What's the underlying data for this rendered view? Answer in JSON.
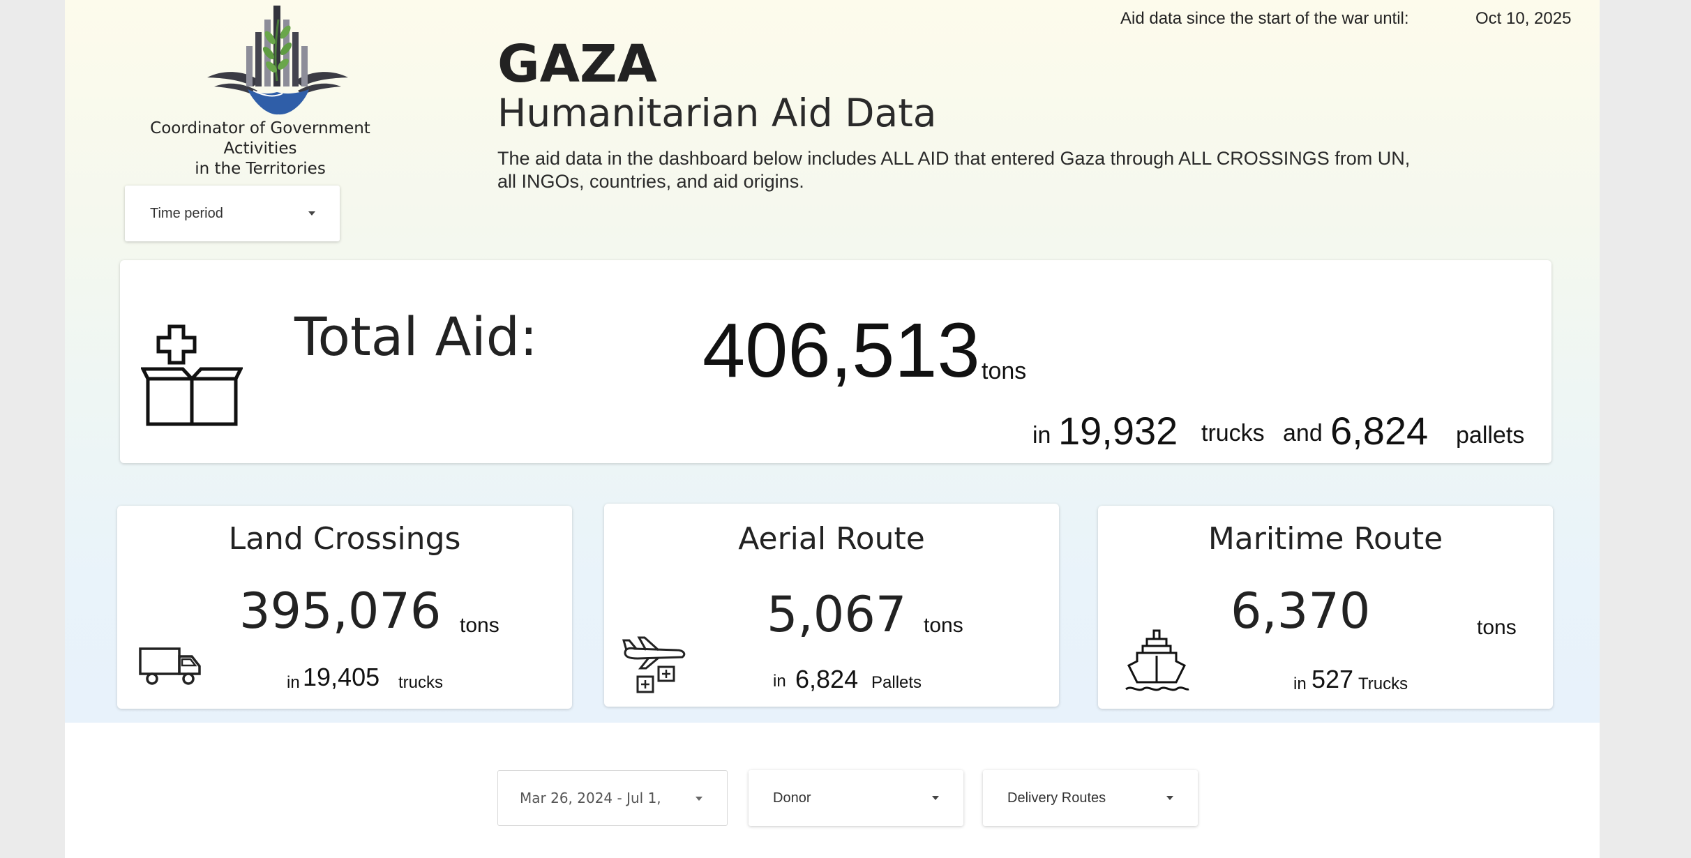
{
  "header": {
    "until_label": "Aid data since the start of the war until:",
    "until_date": "Oct 10, 2025",
    "title": "GAZA",
    "subtitle": "Humanitarian Aid Data",
    "description_line1": "The aid data in the dashboard below includes ALL AID that entered Gaza through ALL CROSSINGS from UN,",
    "description_line2": "all INGOs, countries, and aid origins."
  },
  "org": {
    "name_line1": "Coordinator of Government Activities",
    "name_line2": "in the Territories",
    "logo": "cogat-emblem"
  },
  "filters": {
    "time_period": "Time period",
    "date_range": "Mar 26, 2024 - Jul 1,",
    "donor": "Donor",
    "delivery_routes": "Delivery Routes"
  },
  "total": {
    "label": "Total Aid:",
    "tons": "406,513",
    "tons_unit": "tons",
    "in_word": "in",
    "trucks": "19,932",
    "trucks_unit": "trucks",
    "and_word": "and",
    "pallets": "6,824",
    "pallets_unit": "pallets",
    "icon": "aid-box-icon"
  },
  "land": {
    "title": "Land Crossings",
    "tons": "395,076",
    "tons_unit": "tons",
    "in_word": "in",
    "count": "19,405",
    "count_unit": "trucks",
    "icon": "truck-icon"
  },
  "aerial": {
    "title": "Aerial Route",
    "tons": "5,067",
    "tons_unit": "tons",
    "in_word": "in",
    "count": "6,824",
    "count_unit": "Pallets",
    "icon": "airdrop-icon"
  },
  "maritime": {
    "title": "Maritime Route",
    "tons": "6,370",
    "tons_unit": "tons",
    "in_word": "in",
    "count": "527",
    "count_unit": "Trucks",
    "icon": "ship-icon"
  }
}
